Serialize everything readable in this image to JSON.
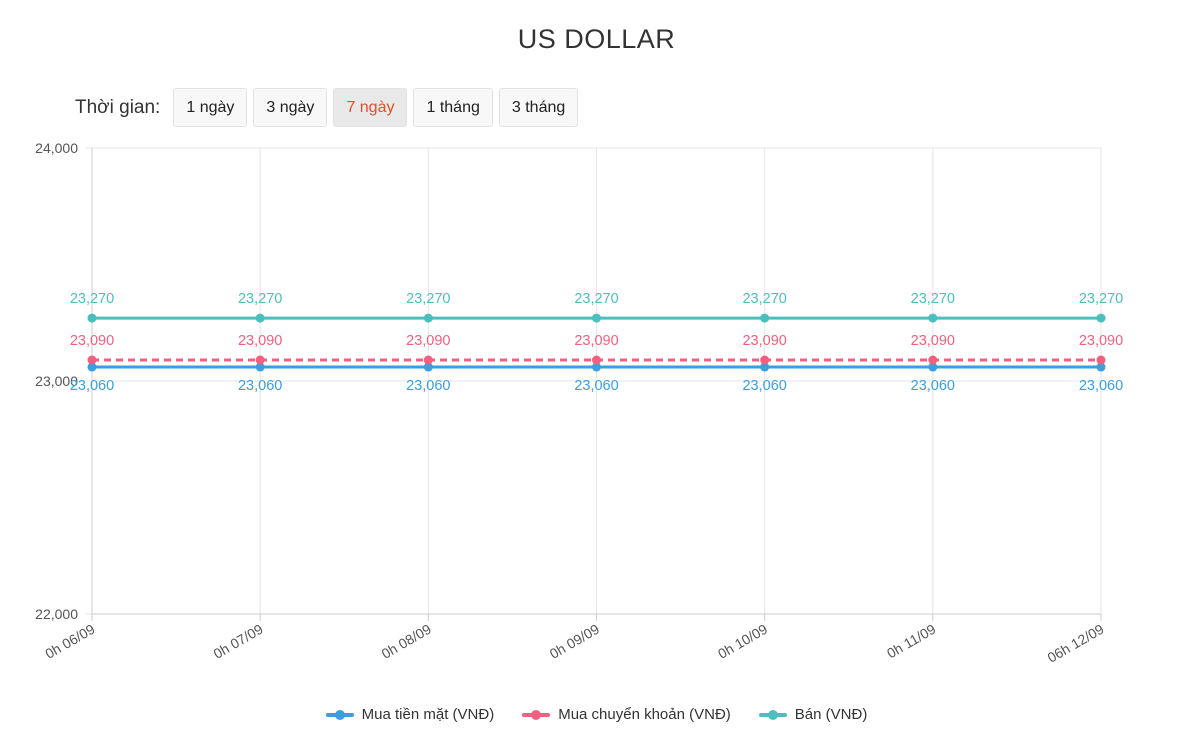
{
  "page": {
    "time_label": "Thời gian:",
    "ranges": [
      {
        "label": "1 ngày",
        "active": false
      },
      {
        "label": "3 ngày",
        "active": false
      },
      {
        "label": "7 ngày",
        "active": true
      },
      {
        "label": "1 tháng",
        "active": false
      },
      {
        "label": "3 tháng",
        "active": false
      }
    ]
  },
  "chart_data": {
    "type": "line",
    "title": "US DOLLAR",
    "x": [
      "0h 06/09",
      "0h 07/09",
      "0h 08/09",
      "0h 09/09",
      "0h 10/09",
      "0h 11/09",
      "06h 12/09"
    ],
    "ylim": [
      22000,
      24000
    ],
    "yticks": [
      22000,
      23000,
      24000
    ],
    "ytick_labels": [
      "22,000",
      "23,000",
      "24,000"
    ],
    "grid": true,
    "legend": "bottom",
    "series": [
      {
        "name": "Mua tiền mặt (VNĐ)",
        "color": "#3a9ee0",
        "dashed": false,
        "label_position": "below",
        "values": [
          23060,
          23060,
          23060,
          23060,
          23060,
          23060,
          23060
        ],
        "labels": [
          "23,060",
          "23,060",
          "23,060",
          "23,060",
          "23,060",
          "23,060",
          "23,060"
        ]
      },
      {
        "name": "Mua chuyển khoản (VNĐ)",
        "color": "#f2607f",
        "dashed": true,
        "label_position": "above",
        "values": [
          23090,
          23090,
          23090,
          23090,
          23090,
          23090,
          23090
        ],
        "labels": [
          "23,090",
          "23,090",
          "23,090",
          "23,090",
          "23,090",
          "23,090",
          "23,090"
        ]
      },
      {
        "name": "Bán (VNĐ)",
        "color": "#4bbfbf",
        "dashed": false,
        "label_position": "above",
        "values": [
          23270,
          23270,
          23270,
          23270,
          23270,
          23270,
          23270
        ],
        "labels": [
          "23,270",
          "23,270",
          "23,270",
          "23,270",
          "23,270",
          "23,270",
          "23,270"
        ]
      }
    ]
  }
}
